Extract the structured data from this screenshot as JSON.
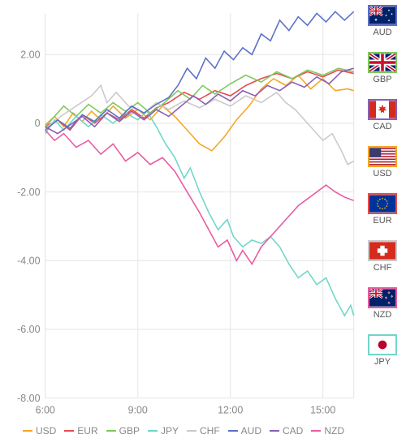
{
  "chart": {
    "type": "line",
    "background_color": "#ffffff",
    "grid_color": "#e6e6e6",
    "axis_text_color": "#888888",
    "axis_fontsize": 12,
    "line_width": 1.5,
    "xlim": [
      6,
      16
    ],
    "ylim": [
      -8,
      3.2
    ],
    "xticks": [
      6,
      9,
      12,
      15
    ],
    "xtick_labels": [
      "6:00",
      "9:00",
      "12:00",
      "15:00"
    ],
    "yticks": [
      -8,
      -6,
      -4,
      -2,
      0,
      2
    ],
    "ytick_labels": [
      "-8.00",
      "-6.00",
      "-4.00",
      "-2.00",
      "0",
      "2.00"
    ],
    "series": {
      "USD": {
        "color": "#f5a623",
        "data": [
          [
            6,
            -0.05
          ],
          [
            6.3,
            0.2
          ],
          [
            6.6,
            -0.1
          ],
          [
            6.9,
            0.3
          ],
          [
            7.2,
            0.05
          ],
          [
            7.5,
            0.35
          ],
          [
            7.8,
            0.1
          ],
          [
            8.2,
            0.5
          ],
          [
            8.6,
            0.15
          ],
          [
            9,
            0.4
          ],
          [
            9.4,
            0.1
          ],
          [
            9.8,
            0.5
          ],
          [
            10.2,
            0.2
          ],
          [
            10.6,
            -0.2
          ],
          [
            11,
            -0.6
          ],
          [
            11.4,
            -0.8
          ],
          [
            11.8,
            -0.4
          ],
          [
            12.2,
            0.1
          ],
          [
            12.6,
            0.5
          ],
          [
            13,
            1.0
          ],
          [
            13.4,
            1.3
          ],
          [
            13.8,
            1.1
          ],
          [
            14.2,
            1.4
          ],
          [
            14.6,
            1.0
          ],
          [
            15,
            1.3
          ],
          [
            15.4,
            0.95
          ],
          [
            15.8,
            1.0
          ],
          [
            16,
            0.95
          ]
        ]
      },
      "EUR": {
        "color": "#e94b4b",
        "data": [
          [
            6,
            -0.1
          ],
          [
            6.4,
            0.1
          ],
          [
            6.8,
            -0.2
          ],
          [
            7.2,
            0.25
          ],
          [
            7.6,
            0.0
          ],
          [
            8,
            0.3
          ],
          [
            8.4,
            0.1
          ],
          [
            8.8,
            0.4
          ],
          [
            9.2,
            0.15
          ],
          [
            9.6,
            0.45
          ],
          [
            10,
            0.6
          ],
          [
            10.5,
            0.9
          ],
          [
            11,
            0.7
          ],
          [
            11.5,
            0.95
          ],
          [
            12,
            0.8
          ],
          [
            12.5,
            1.1
          ],
          [
            13,
            1.3
          ],
          [
            13.5,
            1.45
          ],
          [
            14,
            1.3
          ],
          [
            14.5,
            1.5
          ],
          [
            15,
            1.35
          ],
          [
            15.5,
            1.55
          ],
          [
            16,
            1.45
          ]
        ]
      },
      "GBP": {
        "color": "#7dc95e",
        "data": [
          [
            6,
            -0.1
          ],
          [
            6.3,
            0.2
          ],
          [
            6.6,
            0.5
          ],
          [
            7,
            0.2
          ],
          [
            7.4,
            0.55
          ],
          [
            7.8,
            0.3
          ],
          [
            8.2,
            0.6
          ],
          [
            8.6,
            0.35
          ],
          [
            9,
            0.6
          ],
          [
            9.4,
            0.3
          ],
          [
            9.8,
            0.55
          ],
          [
            10.3,
            0.95
          ],
          [
            10.7,
            0.7
          ],
          [
            11.1,
            1.1
          ],
          [
            11.5,
            0.85
          ],
          [
            12,
            1.15
          ],
          [
            12.5,
            1.4
          ],
          [
            13,
            1.2
          ],
          [
            13.5,
            1.5
          ],
          [
            14,
            1.3
          ],
          [
            14.5,
            1.55
          ],
          [
            15,
            1.4
          ],
          [
            15.5,
            1.6
          ],
          [
            16,
            1.5
          ]
        ]
      },
      "JPY": {
        "color": "#6fd6c9",
        "data": [
          [
            6,
            -0.3
          ],
          [
            6.3,
            0.1
          ],
          [
            6.6,
            -0.2
          ],
          [
            7,
            0.2
          ],
          [
            7.4,
            -0.1
          ],
          [
            7.8,
            0.25
          ],
          [
            8.2,
            0.0
          ],
          [
            8.6,
            0.3
          ],
          [
            9,
            0.1
          ],
          [
            9.3,
            0.35
          ],
          [
            9.6,
            -0.1
          ],
          [
            9.9,
            -0.6
          ],
          [
            10.2,
            -1.0
          ],
          [
            10.5,
            -1.6
          ],
          [
            10.7,
            -1.3
          ],
          [
            11,
            -2.0
          ],
          [
            11.3,
            -2.6
          ],
          [
            11.6,
            -3.1
          ],
          [
            11.9,
            -2.8
          ],
          [
            12.1,
            -3.3
          ],
          [
            12.4,
            -3.6
          ],
          [
            12.7,
            -3.4
          ],
          [
            13,
            -3.5
          ],
          [
            13.3,
            -3.3
          ],
          [
            13.6,
            -3.6
          ],
          [
            13.9,
            -4.1
          ],
          [
            14.2,
            -4.5
          ],
          [
            14.5,
            -4.3
          ],
          [
            14.8,
            -4.7
          ],
          [
            15.1,
            -4.5
          ],
          [
            15.4,
            -5.1
          ],
          [
            15.7,
            -5.6
          ],
          [
            15.9,
            -5.3
          ],
          [
            16,
            -5.6
          ]
        ]
      },
      "CHF": {
        "color": "#c9c9c9",
        "data": [
          [
            6,
            -0.15
          ],
          [
            6.5,
            0.2
          ],
          [
            7,
            0.5
          ],
          [
            7.5,
            0.8
          ],
          [
            7.8,
            1.1
          ],
          [
            8,
            0.6
          ],
          [
            8.3,
            0.9
          ],
          [
            8.7,
            0.5
          ],
          [
            9.2,
            0.3
          ],
          [
            9.6,
            0.6
          ],
          [
            10,
            0.4
          ],
          [
            10.5,
            0.65
          ],
          [
            11,
            0.45
          ],
          [
            11.5,
            0.7
          ],
          [
            12,
            0.5
          ],
          [
            12.5,
            0.8
          ],
          [
            13,
            0.6
          ],
          [
            13.5,
            0.9
          ],
          [
            13.8,
            0.6
          ],
          [
            14.1,
            0.4
          ],
          [
            14.4,
            0.1
          ],
          [
            14.7,
            -0.2
          ],
          [
            15,
            -0.5
          ],
          [
            15.3,
            -0.3
          ],
          [
            15.6,
            -0.8
          ],
          [
            15.8,
            -1.2
          ],
          [
            16,
            -1.1
          ]
        ]
      },
      "AUD": {
        "color": "#5b6fc7",
        "data": [
          [
            6,
            -0.2
          ],
          [
            6.4,
            0.1
          ],
          [
            6.8,
            -0.15
          ],
          [
            7.2,
            0.25
          ],
          [
            7.6,
            0.05
          ],
          [
            8,
            0.4
          ],
          [
            8.4,
            0.15
          ],
          [
            8.8,
            0.5
          ],
          [
            9.2,
            0.3
          ],
          [
            9.6,
            0.55
          ],
          [
            10,
            0.75
          ],
          [
            10.3,
            1.1
          ],
          [
            10.6,
            1.6
          ],
          [
            10.9,
            1.3
          ],
          [
            11.2,
            1.9
          ],
          [
            11.5,
            1.6
          ],
          [
            11.8,
            2.1
          ],
          [
            12.1,
            1.85
          ],
          [
            12.4,
            2.2
          ],
          [
            12.7,
            2.0
          ],
          [
            13,
            2.6
          ],
          [
            13.3,
            2.4
          ],
          [
            13.6,
            3.0
          ],
          [
            13.9,
            2.7
          ],
          [
            14.2,
            3.1
          ],
          [
            14.5,
            2.85
          ],
          [
            14.8,
            3.2
          ],
          [
            15.1,
            2.95
          ],
          [
            15.4,
            3.25
          ],
          [
            15.7,
            3.0
          ],
          [
            16,
            3.25
          ]
        ]
      },
      "CAD": {
        "color": "#8b5fb6",
        "data": [
          [
            6,
            -0.1
          ],
          [
            6.4,
            -0.3
          ],
          [
            6.8,
            -0.05
          ],
          [
            7.2,
            0.2
          ],
          [
            7.6,
            -0.1
          ],
          [
            8,
            0.3
          ],
          [
            8.4,
            0.05
          ],
          [
            8.8,
            0.35
          ],
          [
            9.2,
            0.1
          ],
          [
            9.6,
            0.4
          ],
          [
            10,
            0.2
          ],
          [
            10.4,
            0.5
          ],
          [
            10.8,
            0.8
          ],
          [
            11.2,
            0.55
          ],
          [
            11.6,
            0.85
          ],
          [
            12,
            0.65
          ],
          [
            12.4,
            0.95
          ],
          [
            12.8,
            0.8
          ],
          [
            13.2,
            1.1
          ],
          [
            13.6,
            0.95
          ],
          [
            14,
            1.2
          ],
          [
            14.4,
            1.05
          ],
          [
            14.8,
            1.35
          ],
          [
            15.2,
            1.15
          ],
          [
            15.6,
            1.5
          ],
          [
            16,
            1.6
          ]
        ]
      },
      "NZD": {
        "color": "#e85aa0",
        "data": [
          [
            6,
            -0.2
          ],
          [
            6.3,
            -0.5
          ],
          [
            6.6,
            -0.3
          ],
          [
            7,
            -0.7
          ],
          [
            7.4,
            -0.5
          ],
          [
            7.8,
            -0.9
          ],
          [
            8.2,
            -0.6
          ],
          [
            8.6,
            -1.1
          ],
          [
            9,
            -0.85
          ],
          [
            9.4,
            -1.2
          ],
          [
            9.8,
            -1.0
          ],
          [
            10.2,
            -1.4
          ],
          [
            10.6,
            -2.0
          ],
          [
            11,
            -2.6
          ],
          [
            11.3,
            -3.1
          ],
          [
            11.6,
            -3.6
          ],
          [
            11.9,
            -3.4
          ],
          [
            12.2,
            -4.0
          ],
          [
            12.4,
            -3.7
          ],
          [
            12.7,
            -4.1
          ],
          [
            13,
            -3.6
          ],
          [
            13.3,
            -3.3
          ],
          [
            13.6,
            -3.0
          ],
          [
            13.9,
            -2.7
          ],
          [
            14.2,
            -2.4
          ],
          [
            14.5,
            -2.2
          ],
          [
            14.8,
            -2.0
          ],
          [
            15.1,
            -1.8
          ],
          [
            15.4,
            -2.0
          ],
          [
            15.7,
            -2.15
          ],
          [
            16,
            -2.25
          ]
        ]
      }
    },
    "legend_order": [
      "USD",
      "EUR",
      "GBP",
      "JPY",
      "CHF",
      "AUD",
      "CAD",
      "NZD"
    ]
  },
  "legend": {
    "USD": "USD",
    "EUR": "EUR",
    "GBP": "GBP",
    "JPY": "JPY",
    "CHF": "CHF",
    "AUD": "AUD",
    "CAD": "CAD",
    "NZD": "NZD"
  },
  "side_panel": [
    {
      "code": "AUD",
      "border": "#5b6fc7",
      "flag": "aus"
    },
    {
      "code": "GBP",
      "border": "#7dc95e",
      "flag": "gbr"
    },
    {
      "code": "CAD",
      "border": "#8b5fb6",
      "flag": "can"
    },
    {
      "code": "USD",
      "border": "#f5a623",
      "flag": "usa"
    },
    {
      "code": "EUR",
      "border": "#e94b4b",
      "flag": "eur"
    },
    {
      "code": "CHF",
      "border": "#c9c9c9",
      "flag": "che"
    },
    {
      "code": "NZD",
      "border": "#e85aa0",
      "flag": "nzl"
    },
    {
      "code": "JPY",
      "border": "#6fd6c9",
      "flag": "jpn"
    }
  ]
}
